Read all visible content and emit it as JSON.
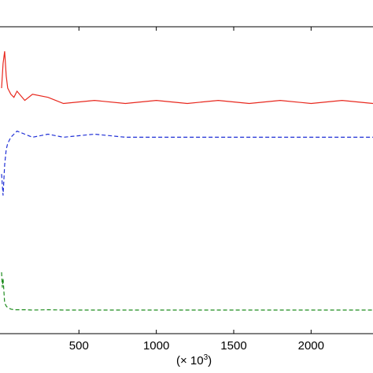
{
  "chart_data": {
    "type": "line",
    "title": "",
    "xlabel": "",
    "ylabel": "",
    "x_multiplier_label": "(× 10",
    "x_multiplier_exponent": "3",
    "x_multiplier_close": ")",
    "xlim": [
      -10,
      2400
    ],
    "ylim": [
      0,
      1
    ],
    "x_ticks": [
      500,
      1000,
      1500,
      2000
    ],
    "x_tick_labels": [
      "500",
      "1000",
      "1500",
      "2000"
    ],
    "grid": false,
    "legend": "none",
    "series": [
      {
        "color": "#e8281e",
        "style": "solid",
        "x": [
          0,
          10,
          20,
          30,
          40,
          60,
          80,
          100,
          150,
          200,
          300,
          400,
          600,
          800,
          1000,
          1200,
          1400,
          1600,
          1800,
          2000,
          2200,
          2400
        ],
        "y": [
          0.8,
          0.88,
          0.92,
          0.84,
          0.8,
          0.78,
          0.77,
          0.79,
          0.76,
          0.78,
          0.77,
          0.75,
          0.76,
          0.75,
          0.76,
          0.75,
          0.76,
          0.75,
          0.76,
          0.75,
          0.76,
          0.75
        ]
      },
      {
        "color": "#1f2fd6",
        "style": "dashed",
        "x": [
          0,
          10,
          20,
          30,
          40,
          60,
          80,
          100,
          150,
          200,
          300,
          400,
          600,
          800,
          1000,
          1200,
          1400,
          1600,
          1800,
          2000,
          2200,
          2400
        ],
        "y": [
          0.52,
          0.45,
          0.55,
          0.6,
          0.62,
          0.64,
          0.65,
          0.66,
          0.65,
          0.64,
          0.65,
          0.64,
          0.65,
          0.64,
          0.64,
          0.64,
          0.64,
          0.64,
          0.64,
          0.64,
          0.64,
          0.64
        ]
      },
      {
        "color": "#1e8c1e",
        "style": "dashed",
        "x": [
          0,
          5,
          10,
          20,
          30,
          40,
          60,
          80,
          100,
          150,
          200,
          300,
          400,
          600,
          800,
          1000,
          1200,
          1400,
          1600,
          2000,
          2400
        ],
        "y": [
          0.2,
          0.15,
          0.18,
          0.1,
          0.09,
          0.085,
          0.08,
          0.078,
          0.078,
          0.078,
          0.077,
          0.078,
          0.077,
          0.077,
          0.077,
          0.077,
          0.077,
          0.077,
          0.077,
          0.077,
          0.077
        ]
      }
    ]
  }
}
